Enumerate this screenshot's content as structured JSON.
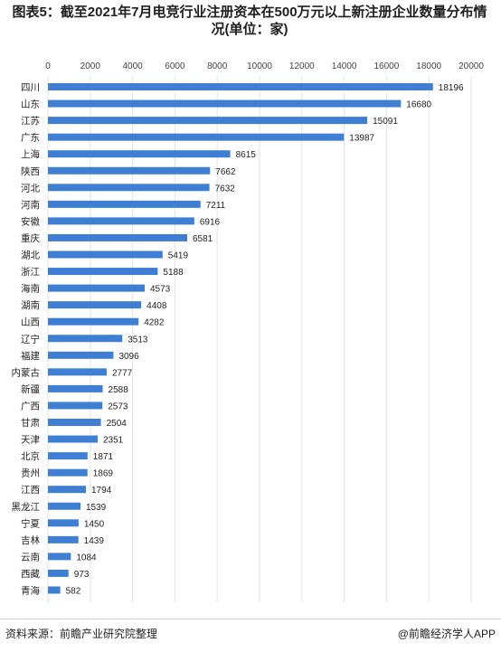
{
  "title": "图表5：截至2021年7月电竞行业注册资本在500万元以上新注册企业数量分布情况(单位：家)",
  "footer": {
    "source": "资料来源：前瞻产业研究院整理",
    "brand": "@前瞻经济学人APP"
  },
  "chart_data": {
    "type": "bar",
    "orientation": "horizontal",
    "title": "图表5：截至2021年7月电竞行业注册资本在500万元以上新注册企业数量分布情况(单位：家)",
    "xlim": [
      0,
      20000
    ],
    "x_ticks": [
      0,
      2000,
      4000,
      6000,
      8000,
      10000,
      12000,
      14000,
      16000,
      18000,
      20000
    ],
    "x_tick_labels": [
      "0",
      "2000",
      "4000",
      "6000",
      "8000",
      "10000",
      "12000",
      "14000",
      "16000",
      "18000",
      "20000"
    ],
    "axis_position": "top",
    "grid": true,
    "bar_color": "#3e7fd4",
    "categories": [
      "四川",
      "山东",
      "江苏",
      "广东",
      "上海",
      "陕西",
      "河北",
      "河南",
      "安徽",
      "重庆",
      "湖北",
      "浙江",
      "海南",
      "湖南",
      "山西",
      "辽宁",
      "福建",
      "内蒙古",
      "新疆",
      "广西",
      "甘肃",
      "天津",
      "北京",
      "贵州",
      "江西",
      "黑龙江",
      "宁夏",
      "吉林",
      "云南",
      "西藏",
      "青海"
    ],
    "values": [
      18196,
      16680,
      15091,
      13987,
      8615,
      7662,
      7632,
      7211,
      6916,
      6581,
      5419,
      5188,
      4573,
      4408,
      4282,
      3513,
      3096,
      2777,
      2588,
      2573,
      2504,
      2351,
      1871,
      1869,
      1794,
      1539,
      1450,
      1439,
      1084,
      973,
      582
    ],
    "value_labels": [
      "18196",
      "16680",
      "15091",
      "13987",
      "8615",
      "7662",
      "7632",
      "7211",
      "6916",
      "6581",
      "5419",
      "5188",
      "4573",
      "4408",
      "4282",
      "3513",
      "3096",
      "2777",
      "2588",
      "2573",
      "2504",
      "2351",
      "1871",
      "1869",
      "1794",
      "1539",
      "1450",
      "1439",
      "1084",
      "973",
      "582"
    ]
  }
}
